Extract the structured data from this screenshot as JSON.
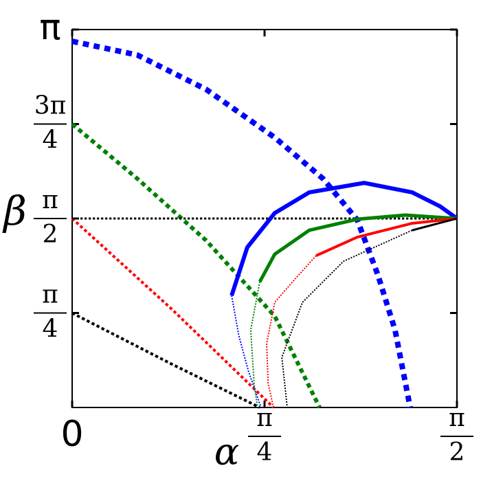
{
  "chart_data": {
    "type": "line",
    "x_label": "α",
    "y_label": "β",
    "xlim": [
      0,
      1.5708
    ],
    "ylim": [
      0,
      3.1416
    ],
    "xticks": [
      0,
      {
        "value": 0.7854,
        "label": "π/4"
      },
      {
        "value": 1.5708,
        "label": "π/2"
      }
    ],
    "yticks": [
      {
        "value": 0.7854,
        "label": "π/4"
      },
      {
        "value": 1.5708,
        "label": "π/2"
      },
      {
        "value": 2.3562,
        "label": "3π/4"
      },
      {
        "value": 3.1416,
        "label": "π"
      }
    ],
    "series": [
      {
        "color": "#0000ff",
        "style": "dashed",
        "width": 8,
        "x": [
          0,
          0.266,
          0.547,
          0.827,
          1.024,
          1.164,
          1.248,
          1.318,
          1.38
        ],
        "values": [
          3.044,
          2.93,
          2.644,
          2.244,
          1.902,
          1.559,
          1.102,
          0.645,
          0
        ]
      },
      {
        "color": "#008000",
        "style": "dashed",
        "width": 6,
        "x": [
          0,
          0.266,
          0.547,
          0.827,
          1.01
        ],
        "values": [
          2.356,
          1.902,
          1.388,
          0.759,
          0
        ]
      },
      {
        "color": "#ff0000",
        "style": "dashed",
        "width": 4,
        "x": [
          0,
          0.407,
          0.822
        ],
        "values": [
          1.571,
          0.817,
          0
        ]
      },
      {
        "color": "#000000",
        "style": "dashed",
        "width": 4,
        "x": [
          0,
          0.407,
          0.766
        ],
        "values": [
          0.785,
          0.36,
          0
        ]
      },
      {
        "color": "#000000",
        "style": "dashed",
        "width": 3,
        "x": [
          0,
          1.571
        ],
        "values": [
          1.571,
          1.571
        ]
      },
      {
        "color": "#0000ff",
        "style": "solid",
        "width": 6,
        "x": [
          0.651,
          0.715,
          0.827,
          0.968,
          1.192,
          1.388,
          1.501,
          1.571
        ],
        "values": [
          0.931,
          1.331,
          1.616,
          1.788,
          1.867,
          1.788,
          1.673,
          1.571
        ]
      },
      {
        "color": "#0000ff",
        "style": "dotted",
        "width": 2,
        "x": [
          0.651,
          0.68,
          0.72,
          0.771
        ],
        "values": [
          0.931,
          0.6,
          0.3,
          0
        ]
      },
      {
        "color": "#008000",
        "style": "solid",
        "width": 5,
        "x": [
          0.766,
          0.827,
          0.968,
          1.164,
          1.36,
          1.571
        ],
        "values": [
          1.045,
          1.274,
          1.473,
          1.565,
          1.599,
          1.571
        ]
      },
      {
        "color": "#008000",
        "style": "dotted",
        "width": 2,
        "x": [
          0.766,
          0.729,
          0.743,
          0.757
        ],
        "values": [
          1.045,
          0.645,
          0.188,
          0
        ]
      },
      {
        "color": "#ff0000",
        "style": "solid",
        "width": 4,
        "x": [
          0.996,
          1.164,
          1.388,
          1.571
        ],
        "values": [
          1.262,
          1.416,
          1.531,
          1.571
        ]
      },
      {
        "color": "#ff0000",
        "style": "dotted",
        "width": 2,
        "x": [
          0.996,
          0.9,
          0.827,
          0.794,
          0.8,
          0.822
        ],
        "values": [
          1.262,
          1.045,
          0.874,
          0.531,
          0.2,
          0
        ]
      },
      {
        "color": "#000000",
        "style": "solid",
        "width": 3,
        "x": [
          1.388,
          1.571
        ],
        "values": [
          1.473,
          1.571
        ]
      },
      {
        "color": "#000000",
        "style": "dotted",
        "width": 2,
        "x": [
          1.388,
          1.108,
          0.94,
          0.856,
          0.878
        ],
        "values": [
          1.473,
          1.216,
          0.874,
          0.417,
          0
        ]
      }
    ]
  }
}
